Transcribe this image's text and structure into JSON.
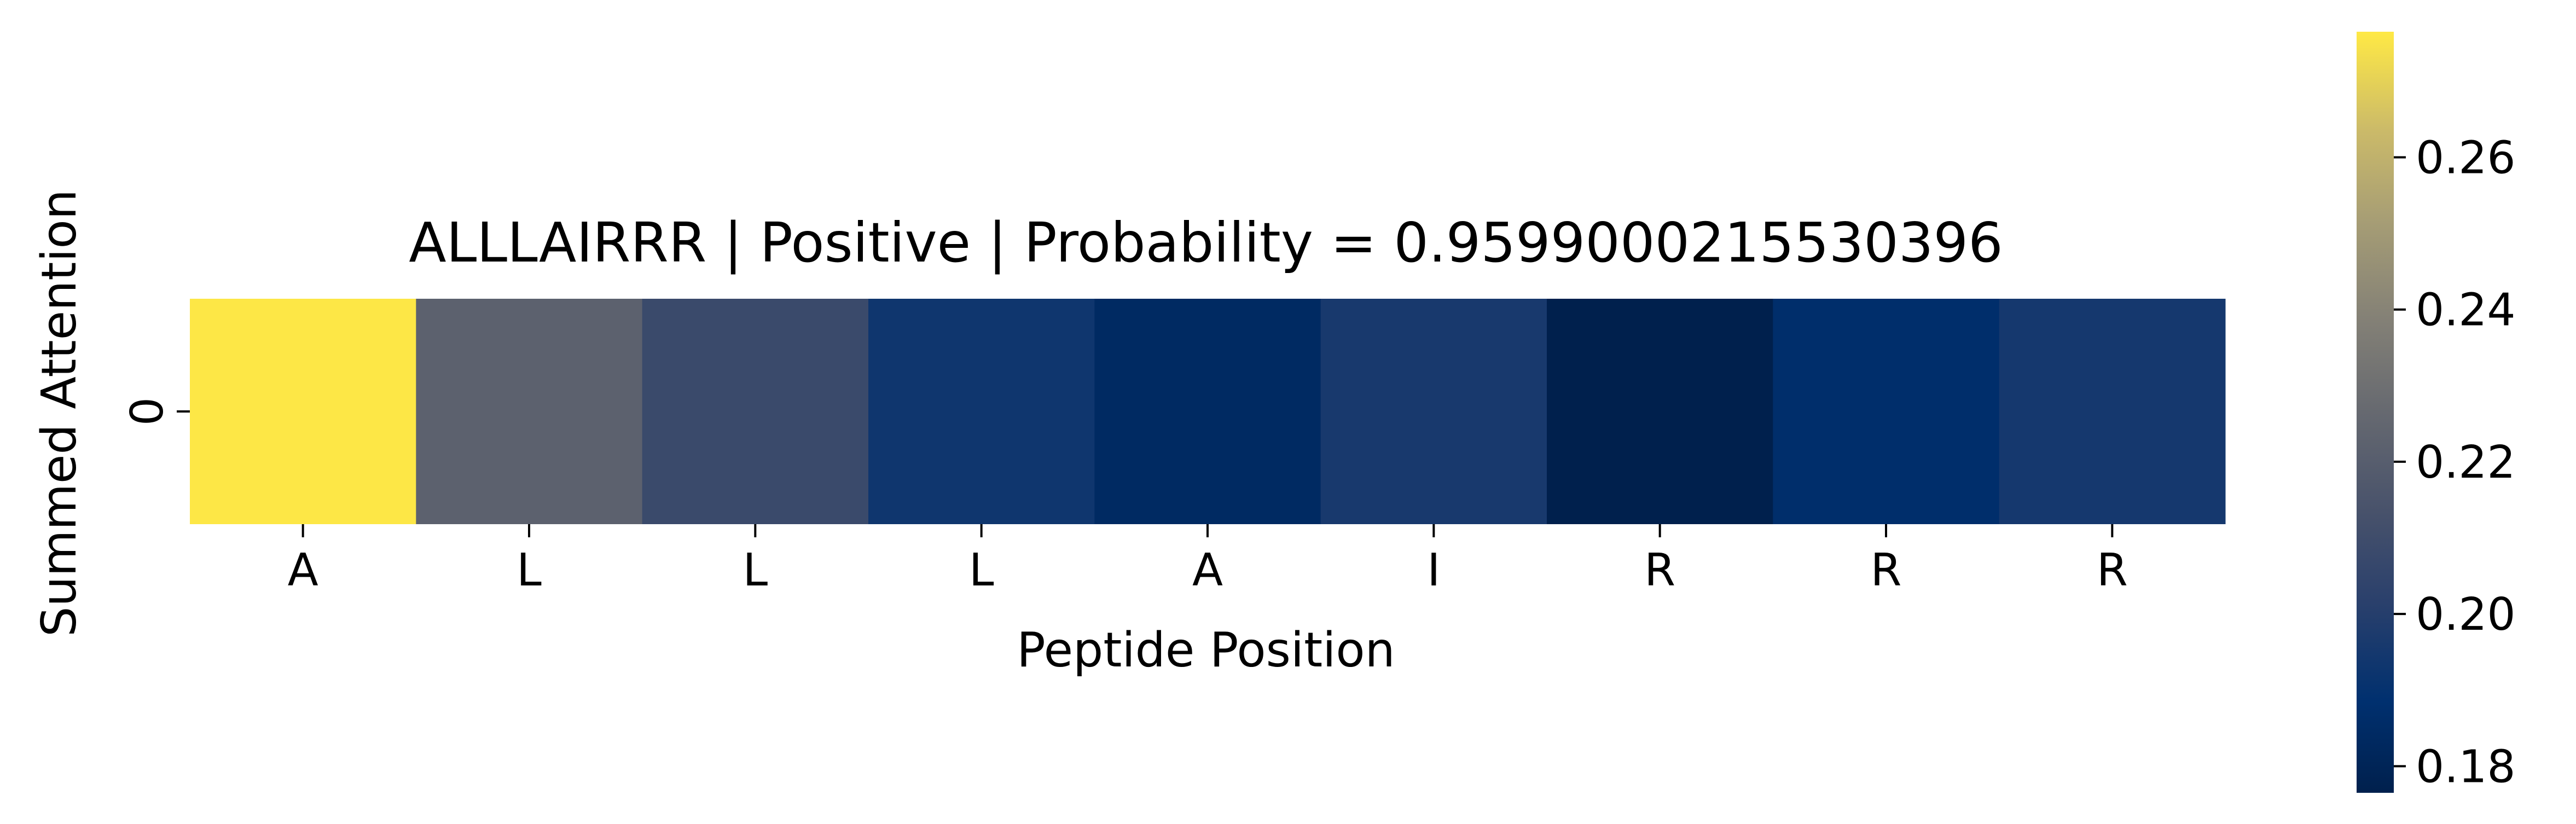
{
  "chart_data": {
    "type": "heatmap",
    "title": "ALLLAIRRR | Positive | Probability = 0.9599000215530396",
    "xlabel": "Peptide Position",
    "ylabel": "Summed Attention",
    "x_tick_labels": [
      "A",
      "L",
      "L",
      "L",
      "A",
      "I",
      "R",
      "R",
      "R"
    ],
    "y_tick_labels": [
      "0"
    ],
    "values": [
      [
        0.276,
        0.222,
        0.208,
        0.193,
        0.184,
        0.196,
        0.176,
        0.187,
        0.195
      ]
    ],
    "colormap": "cividis",
    "colorbar": {
      "vmin": 0.1765,
      "vmax": 0.2765,
      "ticks": [
        0.18,
        0.2,
        0.22,
        0.24,
        0.26
      ],
      "tick_labels": [
        "0.18",
        "0.20",
        "0.22",
        "0.24",
        "0.26"
      ]
    },
    "grid": false,
    "legend": "none"
  }
}
